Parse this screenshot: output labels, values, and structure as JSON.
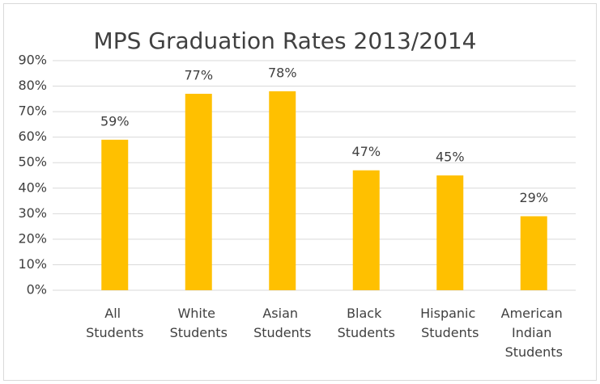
{
  "chart_data": {
    "type": "bar",
    "title": "MPS Graduation Rates 2013/2014",
    "categories": [
      "All Students",
      "White Students",
      "Asian Students",
      "Black Students",
      "Hispanic Students",
      "American Indian Students"
    ],
    "values": [
      59,
      77,
      78,
      47,
      45,
      29
    ],
    "value_labels": [
      "59%",
      "77%",
      "78%",
      "47%",
      "45%",
      "29%"
    ],
    "color": "#ffc000",
    "ylim": [
      0,
      90
    ],
    "yticks": [
      {
        "value": 0,
        "label": "0%"
      },
      {
        "value": 10,
        "label": "10%"
      },
      {
        "value": 20,
        "label": "20%"
      },
      {
        "value": 30,
        "label": "30%"
      },
      {
        "value": 40,
        "label": "40%"
      },
      {
        "value": 50,
        "label": "50%"
      },
      {
        "value": 60,
        "label": "60%"
      },
      {
        "value": 70,
        "label": "70%"
      },
      {
        "value": 80,
        "label": "80%"
      },
      {
        "value": 90,
        "label": "90%"
      }
    ],
    "grid": true
  }
}
